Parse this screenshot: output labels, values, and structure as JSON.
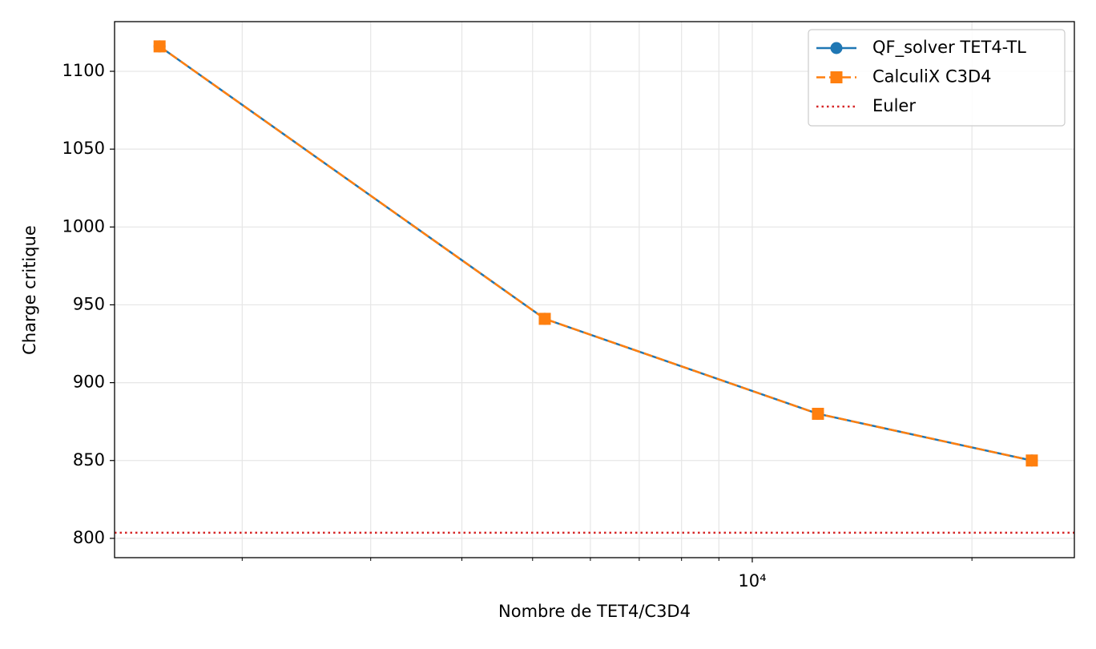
{
  "chart_data": {
    "type": "line",
    "x_label": "Nombre de TET4/C3D4",
    "y_label": "Charge critique",
    "x": [
      1541,
      5196,
      12303,
      24160
    ],
    "series": [
      {
        "name": "QF_solver TET4-TL",
        "color": "#1f77b4",
        "marker": "circle",
        "dash": "solid",
        "values": [
          1116,
          941,
          880,
          850
        ]
      },
      {
        "name": "CalculiX C3D4",
        "color": "#ff7f0e",
        "marker": "square",
        "dash": "dashed",
        "values": [
          1116,
          941,
          880,
          850
        ]
      }
    ],
    "hlines": [
      {
        "name": "Euler",
        "color": "#d62728",
        "dash": "dotted",
        "value": 803.6
      }
    ],
    "xscale": "log",
    "xlim": [
      1337,
      27630
    ],
    "xticks": [
      {
        "value": 10000,
        "label": "10⁴"
      }
    ],
    "xminor_ticks": [
      2000,
      3000,
      4000,
      5000,
      6000,
      7000,
      8000,
      9000,
      20000
    ],
    "ylim": [
      787.6,
      1131.9
    ],
    "yticks": [
      800,
      850,
      900,
      950,
      1000,
      1050,
      1100
    ],
    "grid": true,
    "legend": "upper right"
  }
}
